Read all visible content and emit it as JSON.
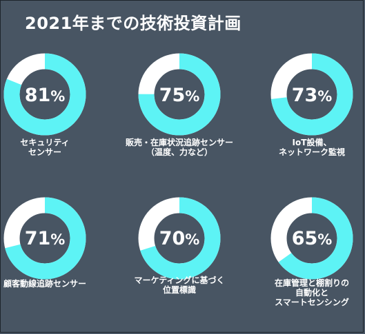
{
  "title": "2021年までの技術投資計画",
  "colors": {
    "background": "#485563",
    "filled": "#5df3f5",
    "remaining": "#ffffff"
  },
  "chart_data": {
    "type": "donut",
    "title": "2021年までの技術投資計画",
    "unit": "%",
    "items": [
      {
        "label": "セキュリティ\nセンサー",
        "value": 81
      },
      {
        "label": "販売・在庫状況追跡センサー\n（温度、力など）",
        "value": 75
      },
      {
        "label": "IoT設備、\nネットワーク監視",
        "value": 73
      },
      {
        "label": "顧客動線追跡センサー",
        "value": 71
      },
      {
        "label": "マーケティングに基づく\n位置標識",
        "value": 70
      },
      {
        "label": "在庫管理と棚割りの\n自動化と\nスマートセンシング",
        "value": 65
      }
    ]
  }
}
